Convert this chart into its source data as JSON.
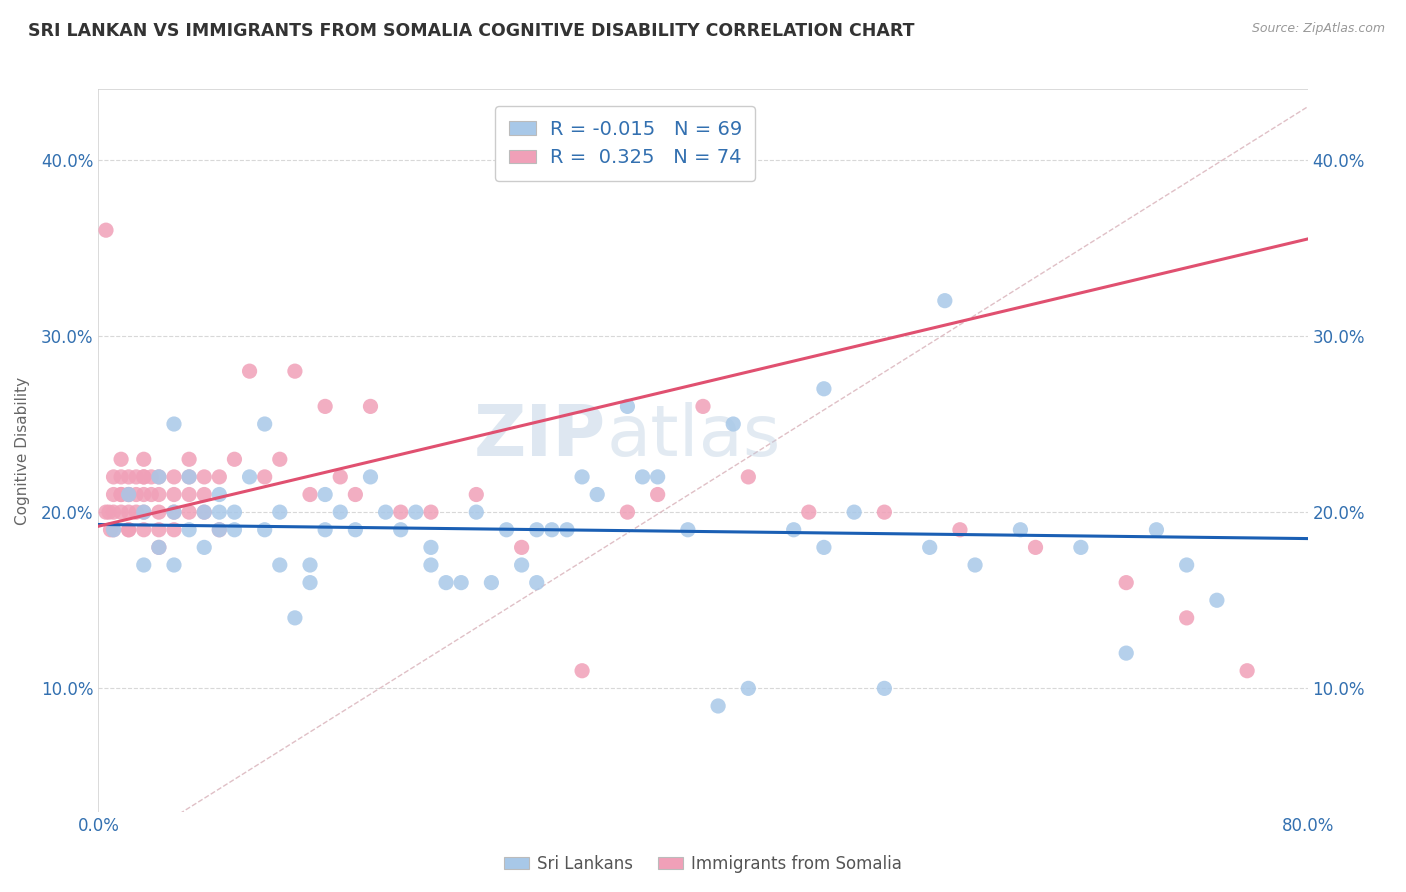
{
  "title": "SRI LANKAN VS IMMIGRANTS FROM SOMALIA COGNITIVE DISABILITY CORRELATION CHART",
  "source": "Source: ZipAtlas.com",
  "ylabel": "Cognitive Disability",
  "xlim": [
    0.0,
    0.8
  ],
  "ylim": [
    0.03,
    0.44
  ],
  "yticks": [
    0.1,
    0.2,
    0.3,
    0.4
  ],
  "ytick_labels": [
    "10.0%",
    "20.0%",
    "30.0%",
    "40.0%"
  ],
  "xticks": [
    0.0,
    0.1,
    0.2,
    0.3,
    0.4,
    0.5,
    0.6,
    0.7,
    0.8
  ],
  "xtick_labels": [
    "0.0%",
    "",
    "",
    "",
    "",
    "",
    "",
    "",
    "80.0%"
  ],
  "blue_color": "#a8c8e8",
  "pink_color": "#f0a0b8",
  "blue_line_color": "#1a5fb4",
  "pink_line_color": "#e05070",
  "dashed_line_color": "#d8b0b8",
  "legend_R_blue": "-0.015",
  "legend_N_blue": "69",
  "legend_R_pink": "0.325",
  "legend_N_pink": "74",
  "watermark_zip": "ZIP",
  "watermark_atlas": "atlas",
  "blue_scatter_x": [
    0.01,
    0.02,
    0.03,
    0.03,
    0.04,
    0.04,
    0.05,
    0.05,
    0.05,
    0.06,
    0.06,
    0.07,
    0.07,
    0.08,
    0.08,
    0.09,
    0.09,
    0.1,
    0.11,
    0.11,
    0.12,
    0.12,
    0.13,
    0.14,
    0.15,
    0.15,
    0.16,
    0.17,
    0.18,
    0.19,
    0.2,
    0.21,
    0.22,
    0.23,
    0.24,
    0.25,
    0.26,
    0.27,
    0.28,
    0.29,
    0.3,
    0.31,
    0.32,
    0.33,
    0.35,
    0.37,
    0.39,
    0.41,
    0.43,
    0.46,
    0.48,
    0.5,
    0.52,
    0.55,
    0.58,
    0.61,
    0.65,
    0.68,
    0.7,
    0.72,
    0.74,
    0.56,
    0.48,
    0.42,
    0.36,
    0.29,
    0.22,
    0.14,
    0.08
  ],
  "blue_scatter_y": [
    0.19,
    0.21,
    0.2,
    0.17,
    0.22,
    0.18,
    0.2,
    0.17,
    0.25,
    0.19,
    0.22,
    0.2,
    0.18,
    0.19,
    0.21,
    0.19,
    0.2,
    0.22,
    0.25,
    0.19,
    0.2,
    0.17,
    0.14,
    0.16,
    0.19,
    0.21,
    0.2,
    0.19,
    0.22,
    0.2,
    0.19,
    0.2,
    0.17,
    0.16,
    0.16,
    0.2,
    0.16,
    0.19,
    0.17,
    0.16,
    0.19,
    0.19,
    0.22,
    0.21,
    0.26,
    0.22,
    0.19,
    0.09,
    0.1,
    0.19,
    0.18,
    0.2,
    0.1,
    0.18,
    0.17,
    0.19,
    0.18,
    0.12,
    0.19,
    0.17,
    0.15,
    0.32,
    0.27,
    0.25,
    0.22,
    0.19,
    0.18,
    0.17,
    0.2
  ],
  "pink_scatter_x": [
    0.005,
    0.005,
    0.007,
    0.008,
    0.01,
    0.01,
    0.01,
    0.01,
    0.015,
    0.015,
    0.015,
    0.015,
    0.015,
    0.02,
    0.02,
    0.02,
    0.02,
    0.02,
    0.02,
    0.025,
    0.025,
    0.025,
    0.03,
    0.03,
    0.03,
    0.03,
    0.03,
    0.03,
    0.035,
    0.035,
    0.04,
    0.04,
    0.04,
    0.04,
    0.04,
    0.05,
    0.05,
    0.05,
    0.05,
    0.06,
    0.06,
    0.06,
    0.06,
    0.07,
    0.07,
    0.07,
    0.08,
    0.08,
    0.09,
    0.1,
    0.11,
    0.12,
    0.13,
    0.14,
    0.15,
    0.16,
    0.17,
    0.18,
    0.2,
    0.22,
    0.25,
    0.28,
    0.32,
    0.35,
    0.37,
    0.4,
    0.43,
    0.47,
    0.52,
    0.57,
    0.62,
    0.68,
    0.72,
    0.76
  ],
  "pink_scatter_y": [
    0.36,
    0.2,
    0.2,
    0.19,
    0.22,
    0.21,
    0.2,
    0.19,
    0.23,
    0.22,
    0.21,
    0.21,
    0.2,
    0.22,
    0.21,
    0.21,
    0.2,
    0.19,
    0.19,
    0.22,
    0.21,
    0.2,
    0.23,
    0.22,
    0.22,
    0.21,
    0.2,
    0.19,
    0.22,
    0.21,
    0.22,
    0.21,
    0.2,
    0.19,
    0.18,
    0.22,
    0.21,
    0.2,
    0.19,
    0.23,
    0.22,
    0.21,
    0.2,
    0.22,
    0.21,
    0.2,
    0.22,
    0.19,
    0.23,
    0.28,
    0.22,
    0.23,
    0.28,
    0.21,
    0.26,
    0.22,
    0.21,
    0.26,
    0.2,
    0.2,
    0.21,
    0.18,
    0.11,
    0.2,
    0.21,
    0.26,
    0.22,
    0.2,
    0.2,
    0.19,
    0.18,
    0.16,
    0.14,
    0.11
  ],
  "blue_line_x": [
    0.0,
    0.8
  ],
  "blue_line_y": [
    0.193,
    0.185
  ],
  "pink_line_x": [
    0.0,
    0.8
  ],
  "pink_line_y": [
    0.192,
    0.355
  ]
}
